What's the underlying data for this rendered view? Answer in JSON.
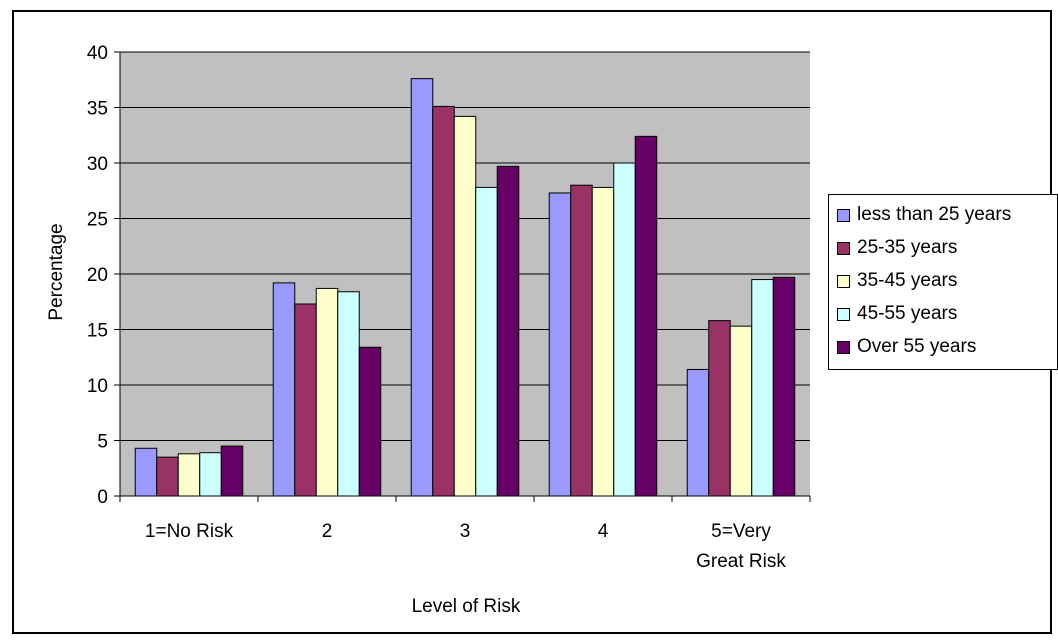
{
  "chart_data": {
    "type": "bar",
    "title": "",
    "xlabel": "Level of Risk",
    "ylabel": "Percentage",
    "ylim": [
      0,
      40
    ],
    "yticks": [
      0,
      5,
      10,
      15,
      20,
      25,
      30,
      35,
      40
    ],
    "grid": true,
    "legend_position": "right",
    "plot_background": "#c0c0c0",
    "categories": [
      [
        "1=No Risk"
      ],
      [
        "2"
      ],
      [
        "3"
      ],
      [
        "4"
      ],
      [
        "5=Very",
        "Great Risk"
      ]
    ],
    "series": [
      {
        "name": "less than 25 years",
        "color": "#9999ff",
        "values": [
          4.3,
          19.2,
          37.6,
          27.3,
          11.4
        ]
      },
      {
        "name": "25-35 years",
        "color": "#993366",
        "values": [
          3.5,
          17.3,
          35.1,
          28.0,
          15.8
        ]
      },
      {
        "name": "35-45 years",
        "color": "#ffffcc",
        "values": [
          3.8,
          18.7,
          34.2,
          27.8,
          15.3
        ]
      },
      {
        "name": "45-55 years",
        "color": "#ccffff",
        "values": [
          3.9,
          18.4,
          27.8,
          30.0,
          19.5
        ]
      },
      {
        "name": "Over 55 years",
        "color": "#660066",
        "values": [
          4.5,
          13.4,
          29.7,
          32.4,
          19.7
        ]
      }
    ]
  }
}
